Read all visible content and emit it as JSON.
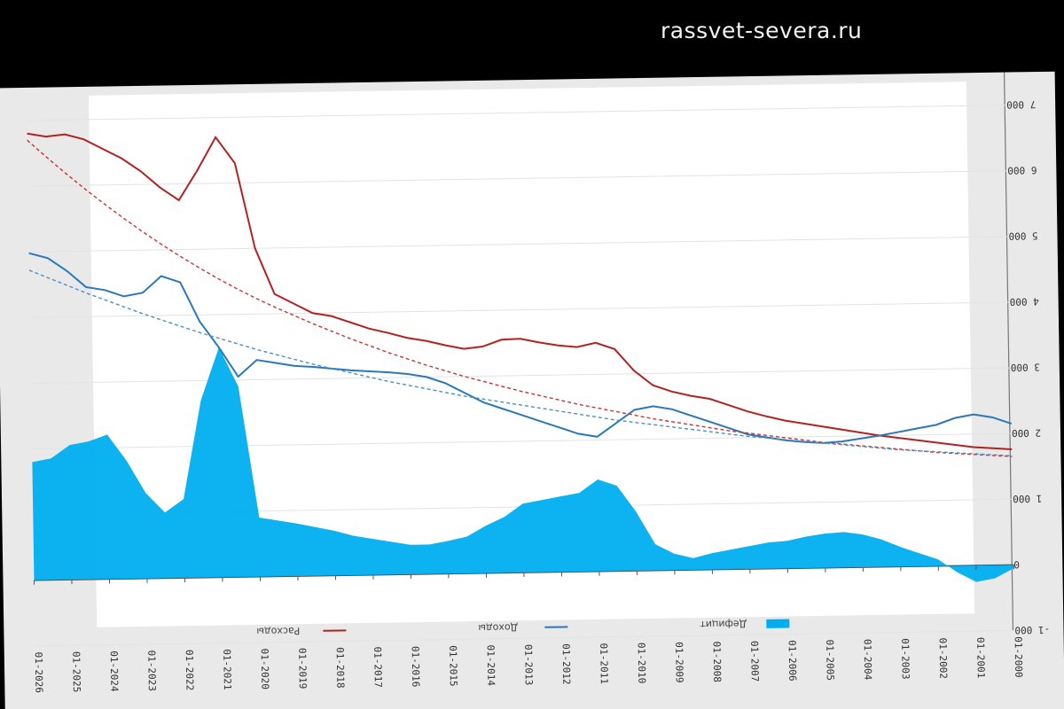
{
  "site": {
    "watermark": "rassvet-severa.ru"
  },
  "chart_data": {
    "type": "line",
    "title": "",
    "ylim": [
      -1000,
      7500
    ],
    "yticks": [
      -1000,
      0,
      1000,
      2000,
      3000,
      4000,
      5000,
      6000,
      7000
    ],
    "ytick_labels": [
      "-1 000",
      "0",
      "1 000",
      "2 000",
      "3 000",
      "4 000",
      "5 000",
      "6 000",
      "7 000"
    ],
    "x_labels": [
      "01-2026",
      "01-2025",
      "01-2024",
      "01-2023",
      "01-2022",
      "01-2021",
      "01-2020",
      "01-2019",
      "01-2018",
      "01-2017",
      "01-2016",
      "01-2015",
      "01-2014",
      "01-2013",
      "01-2012",
      "01-2011",
      "01-2010",
      "01-2009",
      "01-2008",
      "01-2007",
      "01-2006",
      "01-2005",
      "01-2004",
      "01-2003",
      "01-2002",
      "01-2001",
      "01-2000"
    ],
    "axis_reversed": true,
    "grid": true,
    "legend": {
      "position": "bottom",
      "items": [
        {
          "name": "Расходы",
          "color": "#b22222",
          "kind": "line"
        },
        {
          "name": "Доходы",
          "color": "#2b78b8",
          "kind": "line"
        },
        {
          "name": "Дефицит",
          "color": "#00aef0",
          "kind": "area"
        }
      ]
    },
    "x": [
      0,
      0.5,
      1,
      1.5,
      2,
      2.5,
      3,
      3.5,
      4,
      4.5,
      5,
      5.5,
      6,
      6.5,
      7,
      7.5,
      8,
      8.5,
      9,
      9.5,
      10,
      10.5,
      11,
      11.5,
      12,
      12.5,
      13,
      13.5,
      14,
      14.5,
      15,
      15.5,
      16,
      16.5,
      17,
      17.5,
      18,
      18.5,
      19,
      19.5,
      20,
      20.5,
      21,
      21.5,
      22,
      22.5,
      23,
      23.5,
      24,
      24.5,
      25,
      25.5,
      26
    ],
    "series": [
      {
        "name": "Расходы",
        "color": "#b22222",
        "values": [
          6800,
          6750,
          6780,
          6700,
          6550,
          6400,
          6200,
          5950,
          5750,
          6200,
          6700,
          6300,
          5000,
          4300,
          4150,
          4000,
          3950,
          3850,
          3750,
          3680,
          3600,
          3550,
          3480,
          3420,
          3450,
          3550,
          3560,
          3500,
          3450,
          3420,
          3480,
          3380,
          3050,
          2820,
          2720,
          2650,
          2600,
          2500,
          2400,
          2320,
          2250,
          2200,
          2150,
          2100,
          2050,
          2000,
          1960,
          1920,
          1880,
          1840,
          1800,
          1780,
          1760
        ]
      },
      {
        "name": "Доходы",
        "color": "#2b78b8",
        "values": [
          4980,
          4900,
          4700,
          4450,
          4400,
          4300,
          4350,
          4600,
          4500,
          3900,
          3500,
          3050,
          3300,
          3250,
          3200,
          3180,
          3150,
          3120,
          3100,
          3080,
          3050,
          3000,
          2900,
          2750,
          2600,
          2500,
          2400,
          2300,
          2200,
          2100,
          2050,
          2250,
          2450,
          2500,
          2450,
          2350,
          2250,
          2150,
          2050,
          2000,
          1950,
          1920,
          1900,
          1920,
          1960,
          2000,
          2050,
          2100,
          2150,
          2250,
          2300,
          2250,
          2150
        ]
      },
      {
        "name": "Дефицит",
        "color": "#00aef0",
        "values": [
          1800,
          1850,
          2050,
          2100,
          2200,
          1800,
          1300,
          1000,
          1200,
          2700,
          3500,
          2900,
          900,
          850,
          800,
          740,
          680,
          600,
          550,
          500,
          450,
          450,
          500,
          560,
          720,
          850,
          1050,
          1100,
          1150,
          1200,
          1400,
          1300,
          900,
          400,
          250,
          180,
          250,
          300,
          350,
          400,
          420,
          480,
          520,
          540,
          500,
          420,
          300,
          200,
          100,
          -100,
          -250,
          -200,
          -50
        ]
      },
      {
        "name": "Тренд Расходы",
        "color": "#c33",
        "values": [
          6700,
          6440,
          6190,
          5950,
          5720,
          5500,
          5290,
          5090,
          4900,
          4720,
          4550,
          4390,
          4240,
          4100,
          3970,
          3840,
          3720,
          3600,
          3490,
          3380,
          3280,
          3180,
          3090,
          3000,
          2920,
          2840,
          2760,
          2690,
          2620,
          2550,
          2490,
          2430,
          2370,
          2310,
          2260,
          2210,
          2160,
          2110,
          2070,
          2030,
          1990,
          1950,
          1910,
          1880,
          1850,
          1820,
          1790,
          1760,
          1730,
          1710,
          1690,
          1670,
          1650
        ]
      },
      {
        "name": "Тренд Доходы",
        "color": "#4a90c8",
        "values": [
          4720,
          4600,
          4480,
          4360,
          4250,
          4140,
          4030,
          3930,
          3830,
          3730,
          3640,
          3550,
          3460,
          3380,
          3300,
          3220,
          3150,
          3080,
          3010,
          2940,
          2880,
          2820,
          2760,
          2700,
          2650,
          2600,
          2550,
          2500,
          2450,
          2400,
          2350,
          2300,
          2260,
          2220,
          2180,
          2140,
          2100,
          2060,
          2020,
          1990,
          1960,
          1930,
          1900,
          1870,
          1840,
          1810,
          1780,
          1760,
          1740,
          1720,
          1700,
          1680,
          1660
        ]
      }
    ]
  }
}
